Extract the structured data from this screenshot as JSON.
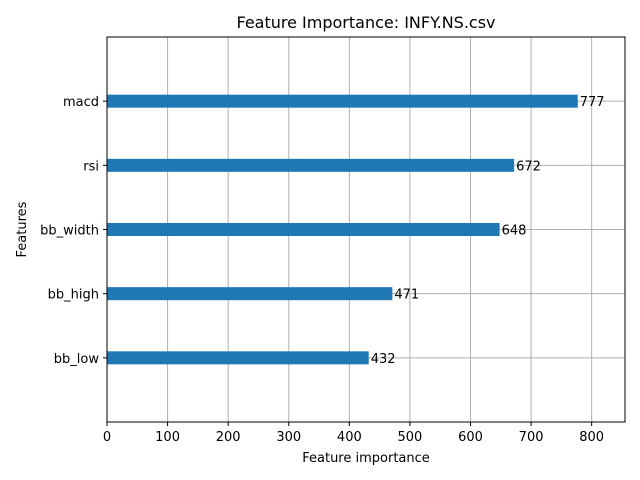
{
  "chart_data": {
    "type": "bar",
    "orientation": "horizontal",
    "title": "Feature Importance: INFY.NS.csv",
    "xlabel": "Feature importance",
    "ylabel": "Features",
    "categories": [
      "macd",
      "rsi",
      "bb_width",
      "bb_high",
      "bb_low"
    ],
    "values": [
      777,
      672,
      648,
      471,
      432
    ],
    "data_labels": [
      "777",
      "672",
      "648",
      "471",
      "432"
    ],
    "xlim": [
      0,
      855
    ],
    "xticks": [
      0,
      100,
      200,
      300,
      400,
      500,
      600,
      700,
      800
    ],
    "xtick_labels": [
      "0",
      "100",
      "200",
      "300",
      "400",
      "500",
      "600",
      "700",
      "800"
    ],
    "grid": true,
    "bar_color": "#1f77b4"
  }
}
